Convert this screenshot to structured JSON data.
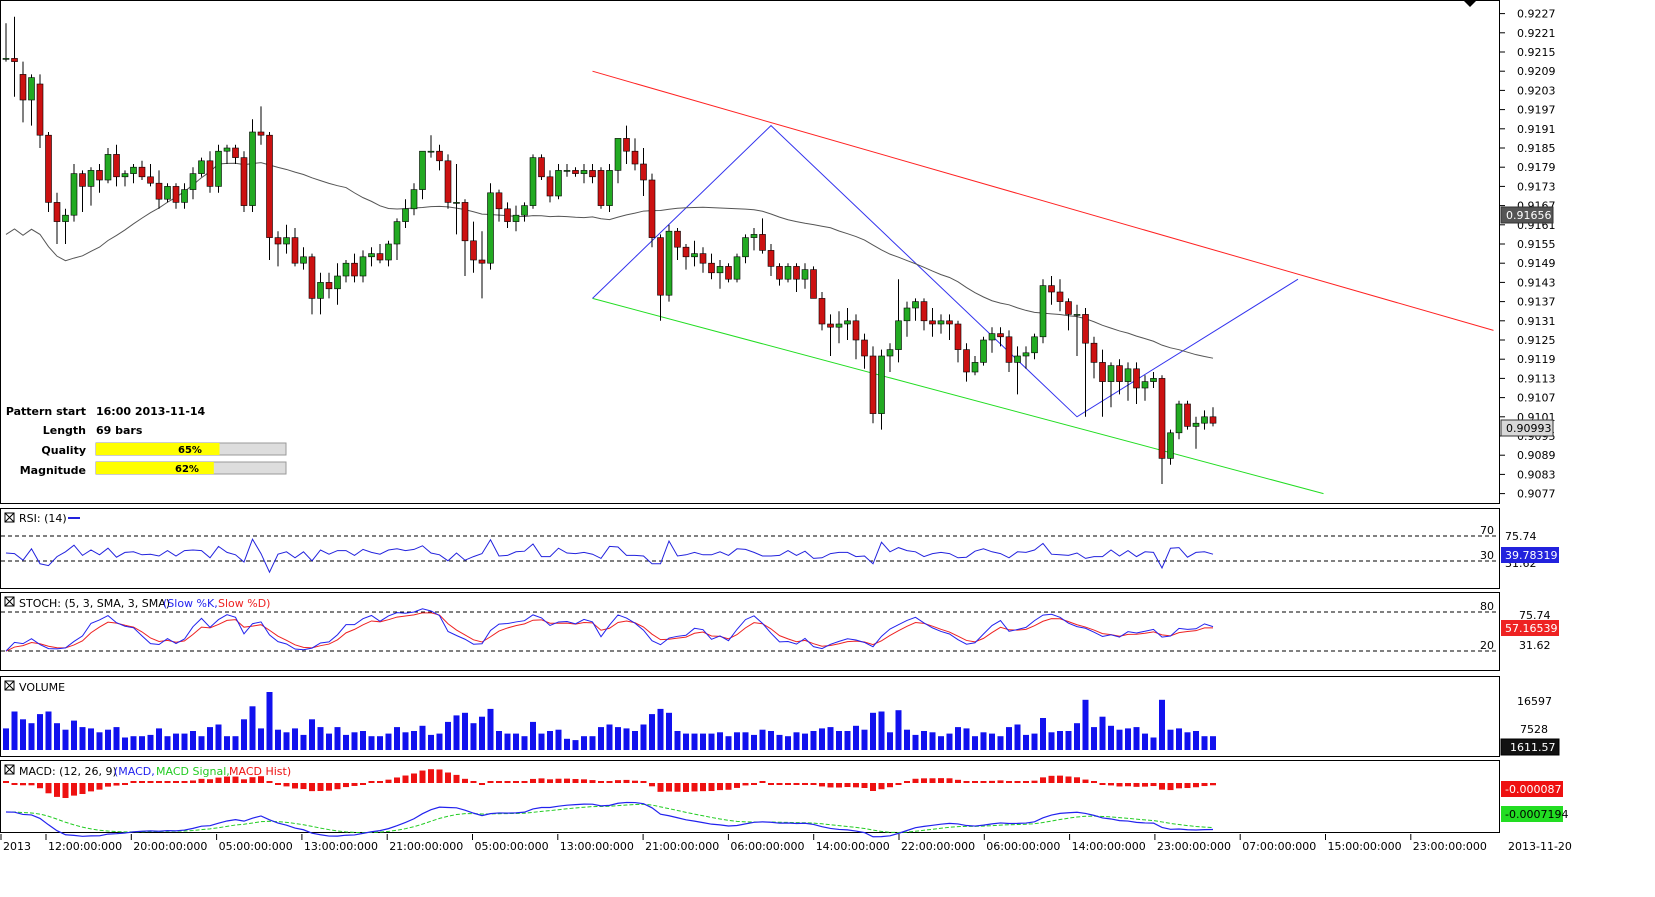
{
  "colors": {
    "bull": "#22aa22",
    "bear": "#cc1111",
    "ma": "#555555",
    "resistance": "#ff2222",
    "support": "#22dd22",
    "zigzag": "#3333ee",
    "rsi": "#2222dd",
    "stoch_k": "#2222ee",
    "stoch_d": "#ee2222",
    "volume": "#1111ee",
    "macd": "#2222ee",
    "macd_signal": "#22cc22",
    "macd_hist": "#ee1111",
    "quality_fill": "#ffff00"
  },
  "pattern_info": {
    "start_label": "Pattern start",
    "start_value": "16:00 2013-11-14",
    "length_label": "Length",
    "length_value": "69 bars",
    "quality_label": "Quality",
    "quality_value": "65%",
    "quality_fraction": 0.65,
    "magnitude_label": "Magnitude",
    "magnitude_value": "62%",
    "magnitude_fraction": 0.62
  },
  "panels": {
    "rsi": {
      "title": "RSI: (14)",
      "levels": [
        "70",
        "30"
      ],
      "axis_ticks": [
        "75.74",
        "31.62"
      ],
      "current": "39.78319"
    },
    "stoch": {
      "title_prefix": "STOCH: (5, 3, SMA, 3, SMA)",
      "k_label": "(Slow %K,",
      "d_label": "Slow %D)",
      "levels": [
        "80",
        "20"
      ],
      "axis_ticks": [
        "75.74",
        "31.62"
      ],
      "current": "57.16539"
    },
    "volume": {
      "title": "VOLUME",
      "axis_ticks": [
        "16597",
        "7528"
      ],
      "current": "1611.57"
    },
    "macd": {
      "title_prefix": "MACD: (12, 26, 9)",
      "macd_label": "(MACD,",
      "signal_label": "MACD Signal,",
      "hist_label": "MACD Hist)",
      "current_signal": "-0.000087",
      "current_macd": "-0.0007194"
    }
  },
  "time_axis": [
    "2013",
    "12:00:00:000",
    "20:00:00:000",
    "05:00:00:000",
    "13:00:00:000",
    "21:00:00:000",
    "05:00:00:000",
    "13:00:00:000",
    "21:00:00:000",
    "06:00:00:000",
    "14:00:00:000",
    "22:00:00:000",
    "06:00:00:000",
    "14:00:00:000",
    "23:00:00:000",
    "07:00:00:000",
    "15:00:00:000",
    "23:00:00:000"
  ],
  "time_axis_end": "2013-11-20",
  "chart_data": {
    "type": "candlestick",
    "y_ticks": [
      "0.9227",
      "0.9221",
      "0.9215",
      "0.9209",
      "0.9203",
      "0.9197",
      "0.9191",
      "0.9185",
      "0.9179",
      "0.9173",
      "0.9167",
      "0.9161",
      "0.9155",
      "0.9149",
      "0.9143",
      "0.9137",
      "0.9131",
      "0.9125",
      "0.9119",
      "0.9113",
      "0.9107",
      "0.9101",
      "0.9095",
      "0.9089",
      "0.9083",
      "0.9077"
    ],
    "ylim": [
      0.9075,
      0.923
    ],
    "current_price": "0.90993",
    "ma_value_label": "0.91656",
    "candles": [
      [
        0.9213,
        0.9224,
        0.9212,
        0.9213
      ],
      [
        0.9213,
        0.9226,
        0.9201,
        0.9212
      ],
      [
        0.9208,
        0.9212,
        0.9193,
        0.92
      ],
      [
        0.92,
        0.9208,
        0.9192,
        0.9207
      ],
      [
        0.9205,
        0.9208,
        0.9185,
        0.9189
      ],
      [
        0.9189,
        0.919,
        0.9165,
        0.9168
      ],
      [
        0.9168,
        0.9171,
        0.9155,
        0.9162
      ],
      [
        0.9162,
        0.9166,
        0.9155,
        0.9164
      ],
      [
        0.9164,
        0.918,
        0.9162,
        0.9177
      ],
      [
        0.9177,
        0.9178,
        0.9165,
        0.9173
      ],
      [
        0.9173,
        0.9179,
        0.9167,
        0.9178
      ],
      [
        0.9178,
        0.918,
        0.9171,
        0.9175
      ],
      [
        0.9175,
        0.9185,
        0.9174,
        0.9183
      ],
      [
        0.9183,
        0.9186,
        0.9173,
        0.9176
      ],
      [
        0.9176,
        0.9178,
        0.9173,
        0.9177
      ],
      [
        0.9177,
        0.918,
        0.9174,
        0.9179
      ],
      [
        0.9179,
        0.9181,
        0.9175,
        0.9176
      ],
      [
        0.9176,
        0.918,
        0.9173,
        0.9174
      ],
      [
        0.9174,
        0.9178,
        0.9166,
        0.9169
      ],
      [
        0.9169,
        0.9174,
        0.9168,
        0.9173
      ],
      [
        0.9173,
        0.9174,
        0.9166,
        0.9168
      ],
      [
        0.9168,
        0.9174,
        0.9166,
        0.9172
      ],
      [
        0.9172,
        0.9179,
        0.9169,
        0.9177
      ],
      [
        0.9177,
        0.9182,
        0.9176,
        0.9181
      ],
      [
        0.9181,
        0.9184,
        0.9171,
        0.9173
      ],
      [
        0.9173,
        0.9186,
        0.9171,
        0.9184
      ],
      [
        0.9184,
        0.9186,
        0.918,
        0.9185
      ],
      [
        0.9185,
        0.9186,
        0.918,
        0.9182
      ],
      [
        0.9182,
        0.9184,
        0.9165,
        0.9167
      ],
      [
        0.9167,
        0.9194,
        0.9165,
        0.919
      ],
      [
        0.919,
        0.9198,
        0.9186,
        0.9189
      ],
      [
        0.9189,
        0.919,
        0.915,
        0.9157
      ],
      [
        0.9157,
        0.9159,
        0.9148,
        0.9155
      ],
      [
        0.9155,
        0.9161,
        0.9152,
        0.9157
      ],
      [
        0.9157,
        0.916,
        0.9148,
        0.9149
      ],
      [
        0.9149,
        0.9154,
        0.9147,
        0.9151
      ],
      [
        0.9151,
        0.9152,
        0.9133,
        0.9138
      ],
      [
        0.9138,
        0.9146,
        0.9133,
        0.9143
      ],
      [
        0.9143,
        0.9146,
        0.9138,
        0.9141
      ],
      [
        0.9141,
        0.9149,
        0.9136,
        0.9145
      ],
      [
        0.9145,
        0.915,
        0.9143,
        0.9149
      ],
      [
        0.9149,
        0.9152,
        0.9143,
        0.9145
      ],
      [
        0.9145,
        0.9153,
        0.9143,
        0.9151
      ],
      [
        0.9151,
        0.9154,
        0.9148,
        0.9152
      ],
      [
        0.9152,
        0.9155,
        0.9149,
        0.915
      ],
      [
        0.915,
        0.9156,
        0.9148,
        0.9155
      ],
      [
        0.9155,
        0.9163,
        0.915,
        0.9162
      ],
      [
        0.9162,
        0.9169,
        0.916,
        0.9166
      ],
      [
        0.9166,
        0.9174,
        0.9164,
        0.9172
      ],
      [
        0.9172,
        0.9183,
        0.9169,
        0.9184
      ],
      [
        0.9184,
        0.9189,
        0.9182,
        0.9184
      ],
      [
        0.9184,
        0.9186,
        0.9178,
        0.9181
      ],
      [
        0.9181,
        0.9183,
        0.9166,
        0.9168
      ],
      [
        0.9168,
        0.918,
        0.9158,
        0.9168
      ],
      [
        0.9168,
        0.9169,
        0.9145,
        0.9156
      ],
      [
        0.9156,
        0.9162,
        0.9146,
        0.915
      ],
      [
        0.915,
        0.9159,
        0.9138,
        0.9149
      ],
      [
        0.9149,
        0.9174,
        0.9147,
        0.9171
      ],
      [
        0.9171,
        0.9172,
        0.9162,
        0.9166
      ],
      [
        0.9166,
        0.9168,
        0.916,
        0.9162
      ],
      [
        0.9162,
        0.9167,
        0.9159,
        0.9164
      ],
      [
        0.9164,
        0.9168,
        0.9162,
        0.9167
      ],
      [
        0.9167,
        0.9183,
        0.9166,
        0.9182
      ],
      [
        0.9182,
        0.9183,
        0.9175,
        0.9176
      ],
      [
        0.9176,
        0.9178,
        0.9168,
        0.917
      ],
      [
        0.917,
        0.918,
        0.9169,
        0.9178
      ],
      [
        0.9178,
        0.918,
        0.9176,
        0.9178
      ],
      [
        0.9178,
        0.9179,
        0.9176,
        0.9177
      ],
      [
        0.9177,
        0.918,
        0.9174,
        0.9178
      ],
      [
        0.9178,
        0.918,
        0.9174,
        0.9176
      ],
      [
        0.9178,
        0.9179,
        0.9166,
        0.9167
      ],
      [
        0.9167,
        0.918,
        0.9165,
        0.9178
      ],
      [
        0.9178,
        0.9187,
        0.9174,
        0.9188
      ],
      [
        0.9188,
        0.9192,
        0.918,
        0.9184
      ],
      [
        0.9184,
        0.9188,
        0.9178,
        0.918
      ],
      [
        0.918,
        0.9185,
        0.917,
        0.9175
      ],
      [
        0.9175,
        0.9177,
        0.9154,
        0.9157
      ],
      [
        0.9157,
        0.9158,
        0.9131,
        0.9139
      ],
      [
        0.9139,
        0.9161,
        0.9137,
        0.9159
      ],
      [
        0.9159,
        0.916,
        0.915,
        0.9154
      ],
      [
        0.9154,
        0.9155,
        0.9147,
        0.9151
      ],
      [
        0.9151,
        0.9156,
        0.9148,
        0.9152
      ],
      [
        0.9152,
        0.9154,
        0.9146,
        0.9149
      ],
      [
        0.9149,
        0.9152,
        0.9144,
        0.9146
      ],
      [
        0.9146,
        0.915,
        0.9141,
        0.9148
      ],
      [
        0.9148,
        0.9149,
        0.9143,
        0.9144
      ],
      [
        0.9144,
        0.9152,
        0.9143,
        0.9151
      ],
      [
        0.9151,
        0.9158,
        0.9149,
        0.9157
      ],
      [
        0.9157,
        0.916,
        0.9153,
        0.9158
      ],
      [
        0.9158,
        0.9163,
        0.9152,
        0.9153
      ],
      [
        0.9153,
        0.9155,
        0.9145,
        0.9148
      ],
      [
        0.9148,
        0.9149,
        0.9142,
        0.9144
      ],
      [
        0.9144,
        0.9149,
        0.9143,
        0.9148
      ],
      [
        0.9148,
        0.9149,
        0.914,
        0.9144
      ],
      [
        0.9144,
        0.9149,
        0.9141,
        0.9147
      ],
      [
        0.9147,
        0.9148,
        0.9138,
        0.9138
      ],
      [
        0.9138,
        0.914,
        0.9128,
        0.913
      ],
      [
        0.913,
        0.9133,
        0.912,
        0.9129
      ],
      [
        0.9129,
        0.9134,
        0.9124,
        0.913
      ],
      [
        0.913,
        0.9135,
        0.9125,
        0.9131
      ],
      [
        0.9131,
        0.9133,
        0.9119,
        0.9125
      ],
      [
        0.9125,
        0.9127,
        0.9116,
        0.912
      ],
      [
        0.912,
        0.9123,
        0.9099,
        0.9102
      ],
      [
        0.9102,
        0.9122,
        0.9097,
        0.912
      ],
      [
        0.912,
        0.9124,
        0.9115,
        0.9122
      ],
      [
        0.9122,
        0.9144,
        0.9118,
        0.9131
      ],
      [
        0.9131,
        0.9137,
        0.9126,
        0.9135
      ],
      [
        0.9135,
        0.9138,
        0.9131,
        0.9137
      ],
      [
        0.9137,
        0.9138,
        0.9128,
        0.9131
      ],
      [
        0.9131,
        0.9135,
        0.9126,
        0.913
      ],
      [
        0.913,
        0.9133,
        0.9127,
        0.9131
      ],
      [
        0.9131,
        0.9133,
        0.9125,
        0.913
      ],
      [
        0.913,
        0.9131,
        0.9118,
        0.9122
      ],
      [
        0.9122,
        0.9124,
        0.9112,
        0.9115
      ],
      [
        0.9115,
        0.912,
        0.9114,
        0.9118
      ],
      [
        0.9118,
        0.9126,
        0.9117,
        0.9125
      ],
      [
        0.9125,
        0.9129,
        0.9121,
        0.9127
      ],
      [
        0.9127,
        0.9129,
        0.9123,
        0.9126
      ],
      [
        0.9126,
        0.9128,
        0.9115,
        0.9118
      ],
      [
        0.9118,
        0.9123,
        0.9108,
        0.912
      ],
      [
        0.912,
        0.9123,
        0.9116,
        0.9121
      ],
      [
        0.9121,
        0.9127,
        0.9119,
        0.9126
      ],
      [
        0.9126,
        0.9144,
        0.9124,
        0.9142
      ],
      [
        0.9142,
        0.9145,
        0.9136,
        0.914
      ],
      [
        0.914,
        0.9144,
        0.9134,
        0.9137
      ],
      [
        0.9137,
        0.9138,
        0.9128,
        0.9133
      ],
      [
        0.9133,
        0.9136,
        0.912,
        0.9133
      ],
      [
        0.9133,
        0.9135,
        0.9101,
        0.9124
      ],
      [
        0.9124,
        0.9126,
        0.9113,
        0.9118
      ],
      [
        0.9118,
        0.9122,
        0.9101,
        0.9112
      ],
      [
        0.9112,
        0.9118,
        0.9104,
        0.9117
      ],
      [
        0.9117,
        0.9119,
        0.9108,
        0.9112
      ],
      [
        0.9112,
        0.9118,
        0.9106,
        0.9116
      ],
      [
        0.9116,
        0.9118,
        0.9105,
        0.911
      ],
      [
        0.911,
        0.9114,
        0.9106,
        0.9112
      ],
      [
        0.9112,
        0.9115,
        0.911,
        0.9113
      ],
      [
        0.9113,
        0.9114,
        0.908,
        0.9088
      ],
      [
        0.9088,
        0.9097,
        0.9086,
        0.9096
      ],
      [
        0.9096,
        0.9106,
        0.9094,
        0.9105
      ],
      [
        0.9105,
        0.9106,
        0.9097,
        0.9098
      ],
      [
        0.9098,
        0.9101,
        0.9091,
        0.9099
      ],
      [
        0.9099,
        0.9103,
        0.9097,
        0.9101
      ],
      [
        0.9101,
        0.9104,
        0.9098,
        0.9099
      ]
    ]
  }
}
